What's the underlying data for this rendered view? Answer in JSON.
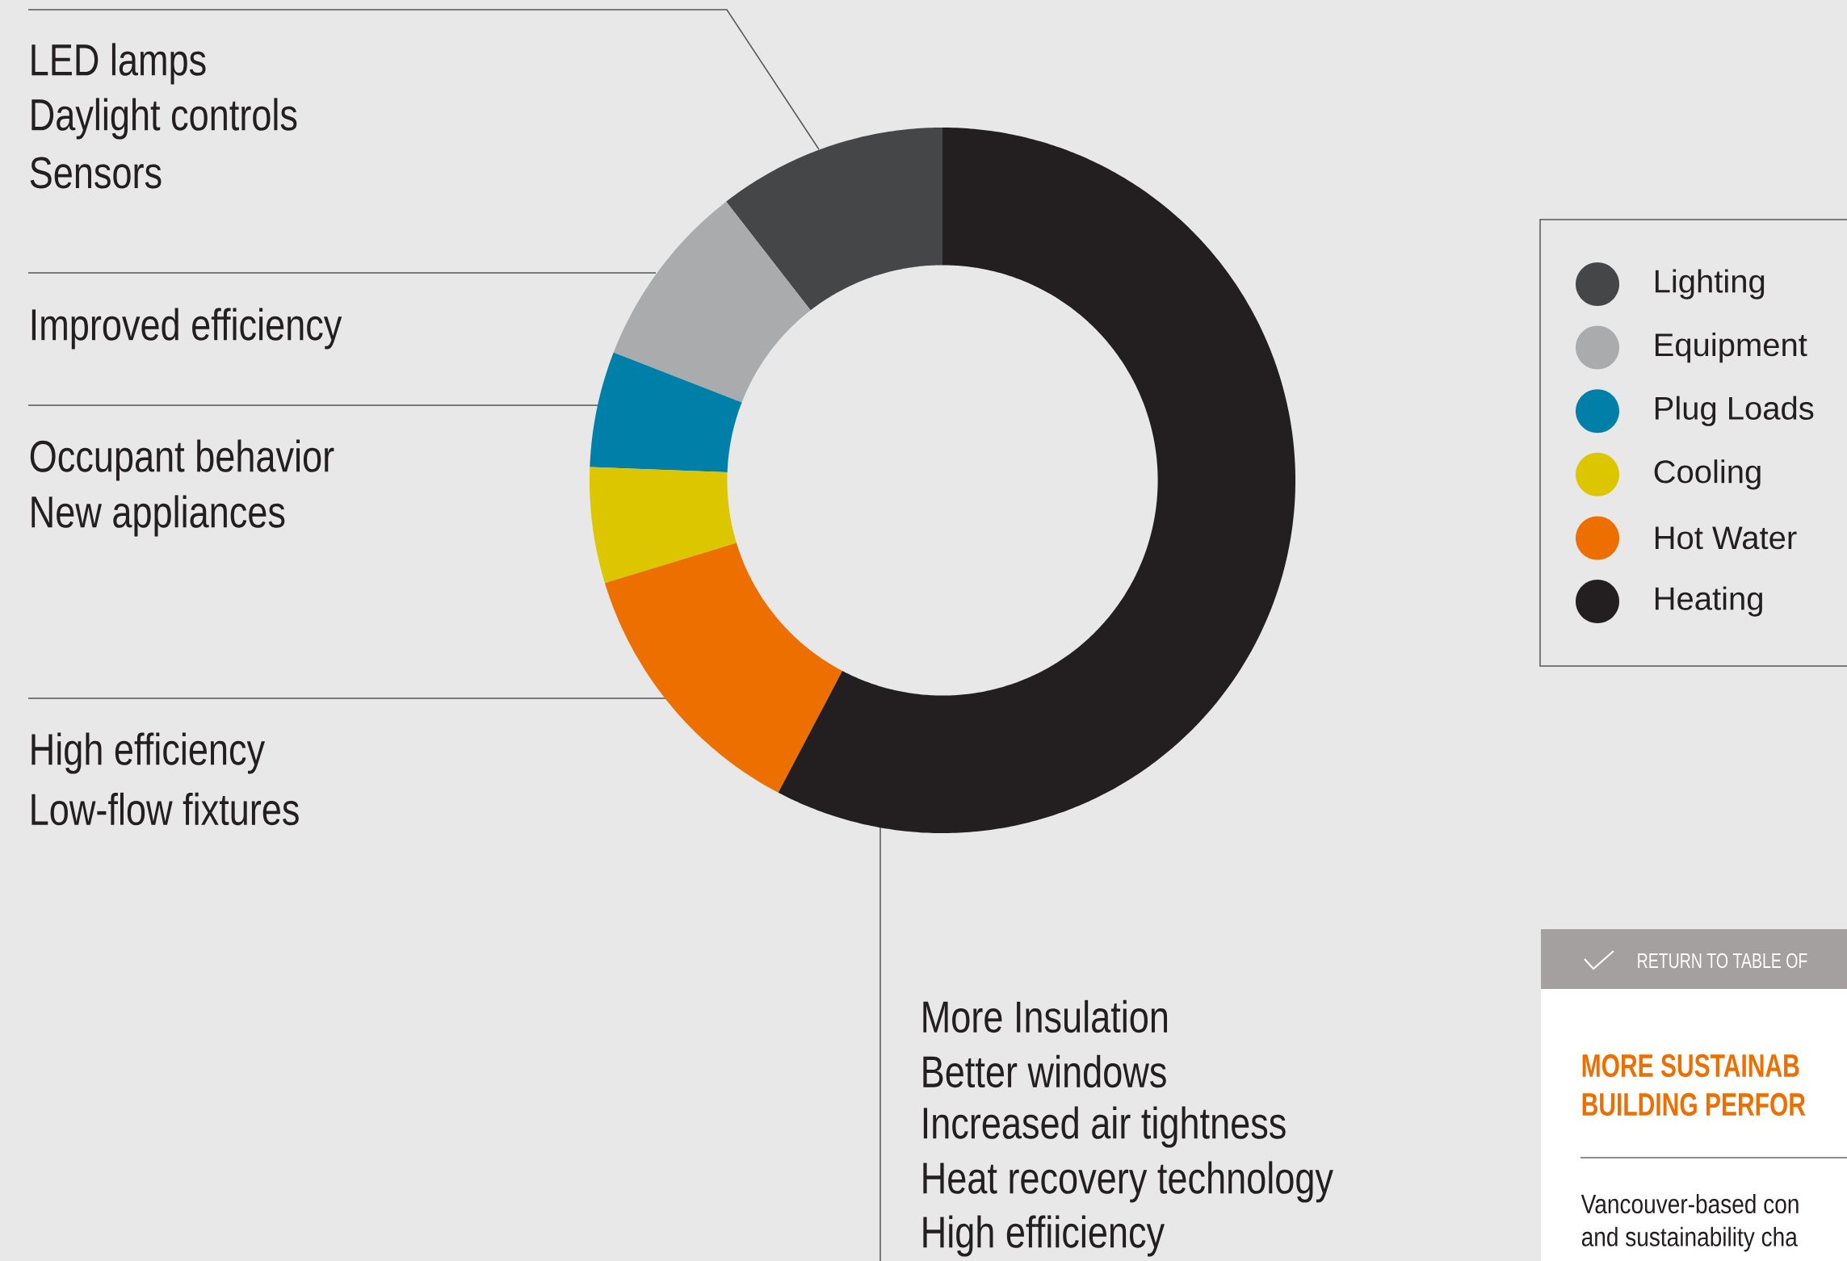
{
  "chart_data": {
    "type": "donut",
    "categories": [
      "Lighting",
      "Equipment",
      "Plug Loads",
      "Cooling",
      "Hot Water",
      "Heating"
    ],
    "values": [
      10.5,
      8.6,
      5.3,
      5.3,
      12.6,
      57.7
    ],
    "colors": [
      "#454648",
      "#aaabad",
      "#0080a8",
      "#dcc600",
      "#ec6f00",
      "#231f20"
    ],
    "legend": "right",
    "annotations": [
      "LED lamps",
      "Daylight controls",
      "Sensors",
      "Improved efficiency",
      "Occupant behavior",
      "New appliances",
      "High efficiency",
      "Low-flow fixtures",
      "More Insulation",
      "Better windows",
      "Increased air tightness",
      "Heat recovery technology",
      "High effiiciency",
      "RETURN TO TABLE OF",
      "MORE SUSTAINAB",
      "BUILDING PERFOR",
      "Vancouver-based con",
      "and sustainability cha"
    ]
  }
}
